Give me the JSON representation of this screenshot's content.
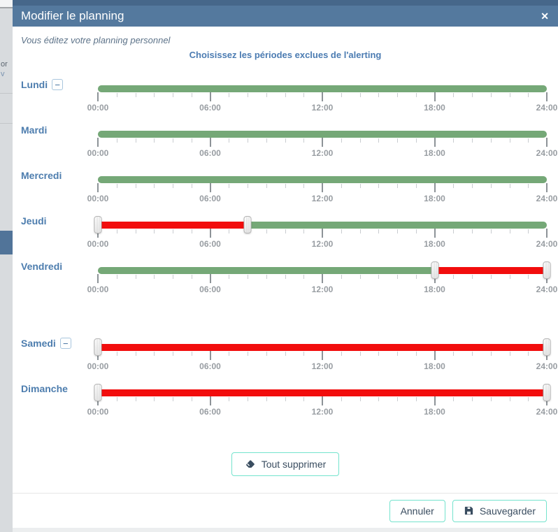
{
  "modal": {
    "title": "Modifier le planning",
    "subtitle": "Vous éditez votre planning personnel",
    "heading": "Choisissez les périodes exclues de l'alerting"
  },
  "icons": {
    "close": "✕",
    "minus": "−",
    "eraser": "eraser-icon",
    "save": "save-icon"
  },
  "axis": {
    "hours_total": 24,
    "major_every": 6,
    "tick_labels": [
      "00:00",
      "06:00",
      "12:00",
      "18:00",
      "24:00"
    ]
  },
  "days": [
    {
      "label": "Lundi",
      "removable": true,
      "spacer_before": false,
      "segments": [
        {
          "start": 0,
          "end": 24,
          "type": "included"
        }
      ],
      "handles": []
    },
    {
      "label": "Mardi",
      "removable": false,
      "spacer_before": false,
      "segments": [
        {
          "start": 0,
          "end": 24,
          "type": "included"
        }
      ],
      "handles": []
    },
    {
      "label": "Mercredi",
      "removable": false,
      "spacer_before": false,
      "segments": [
        {
          "start": 0,
          "end": 24,
          "type": "included"
        }
      ],
      "handles": []
    },
    {
      "label": "Jeudi",
      "removable": false,
      "spacer_before": false,
      "segments": [
        {
          "start": 0,
          "end": 8,
          "type": "excluded"
        },
        {
          "start": 8,
          "end": 24,
          "type": "included"
        }
      ],
      "handles": [
        0,
        8
      ]
    },
    {
      "label": "Vendredi",
      "removable": false,
      "spacer_before": false,
      "segments": [
        {
          "start": 0,
          "end": 18,
          "type": "included"
        },
        {
          "start": 18,
          "end": 24,
          "type": "excluded"
        }
      ],
      "handles": [
        18,
        24
      ]
    },
    {
      "label": "Samedi",
      "removable": true,
      "spacer_before": true,
      "segments": [
        {
          "start": 0,
          "end": 24,
          "type": "excluded"
        }
      ],
      "handles": [
        0,
        24
      ]
    },
    {
      "label": "Dimanche",
      "removable": false,
      "spacer_before": false,
      "segments": [
        {
          "start": 0,
          "end": 24,
          "type": "excluded"
        }
      ],
      "handles": [
        0,
        24
      ]
    }
  ],
  "buttons": {
    "clear_all": "Tout supprimer",
    "cancel": "Annuler",
    "save": "Sauvegarder"
  },
  "colors": {
    "included": "#75a877",
    "excluded": "#f20d0d",
    "header": "#54799e",
    "accent": "#74e3cd"
  },
  "background": {
    "left_fragments": [
      "or",
      "v"
    ]
  }
}
